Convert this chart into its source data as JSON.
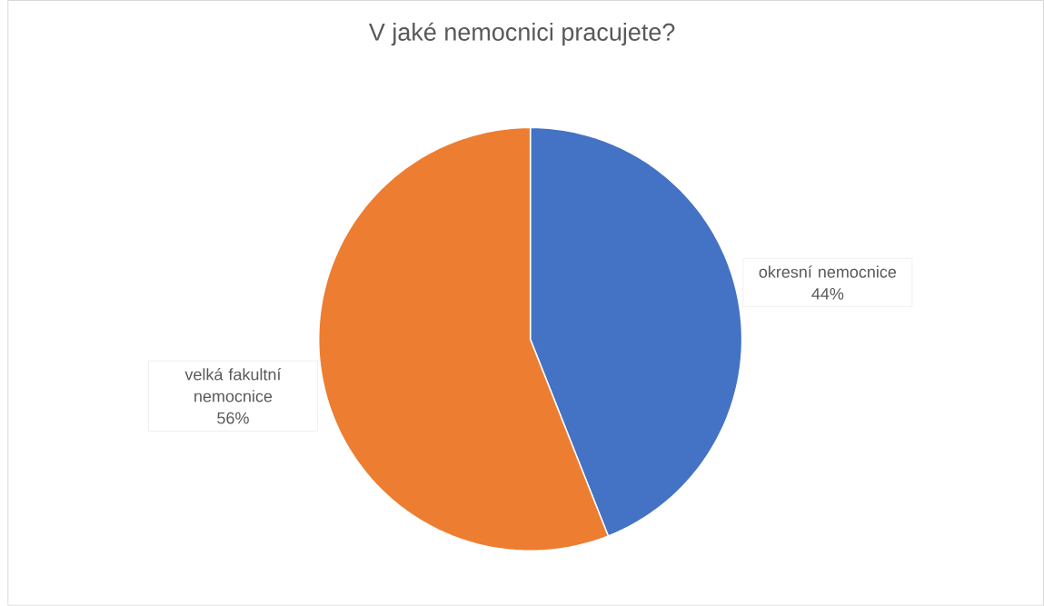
{
  "chart_data": {
    "type": "pie",
    "title": "V jaké nemocnici pracujete?",
    "categories": [
      "okresní nemocnice",
      "velká fakultní nemocnice"
    ],
    "values": [
      44,
      56
    ],
    "colors": [
      "#4472c4",
      "#ed7d31"
    ],
    "value_labels": [
      "44%",
      "56%"
    ]
  }
}
